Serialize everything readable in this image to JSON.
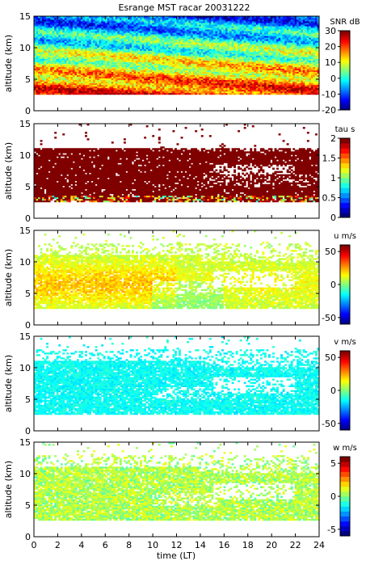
{
  "figure_title": "Esrange MST racar 20031222",
  "xlabel": "time (LT)",
  "chart_data": [
    {
      "type": "heatmap",
      "variable": "snr",
      "colorbar_label": "SNR dB",
      "ylabel": "altitude (km)",
      "xlim": [
        0,
        24
      ],
      "ylim": [
        0,
        15
      ],
      "clim": [
        -20,
        30
      ],
      "colorbar_ticks": [
        -20,
        -10,
        0,
        10,
        20,
        30
      ],
      "colormap": "jet-smooth",
      "data_altitude_range_km": [
        2.5,
        15
      ],
      "x_ticks": [
        0,
        2,
        4,
        6,
        8,
        10,
        12,
        14,
        16,
        18,
        20,
        22,
        24
      ],
      "y_ticks": [
        0,
        5,
        10,
        15
      ]
    },
    {
      "type": "heatmap",
      "variable": "tau",
      "colorbar_label": "tau s",
      "ylabel": "altitude (km)",
      "xlim": [
        0,
        24
      ],
      "ylim": [
        0,
        15
      ],
      "clim": [
        0,
        2
      ],
      "colorbar_ticks": [
        0,
        0.5,
        1,
        1.5,
        2
      ],
      "colormap": "jet-discrete",
      "data_altitude_range_km": [
        2.5,
        11
      ],
      "x_ticks": [
        0,
        2,
        4,
        6,
        8,
        10,
        12,
        14,
        16,
        18,
        20,
        22,
        24
      ],
      "y_ticks": [
        0,
        5,
        10,
        15
      ]
    },
    {
      "type": "heatmap",
      "variable": "u",
      "colorbar_label": "u m/s",
      "ylabel": "altitude (km)",
      "xlim": [
        0,
        24
      ],
      "ylim": [
        0,
        15
      ],
      "clim": [
        -60,
        60
      ],
      "colorbar_ticks": [
        -50,
        0,
        50
      ],
      "colormap": "jet-smooth",
      "data_altitude_range_km": [
        2.5,
        11
      ],
      "x_ticks": [
        0,
        2,
        4,
        6,
        8,
        10,
        12,
        14,
        16,
        18,
        20,
        22,
        24
      ],
      "y_ticks": [
        0,
        5,
        10,
        15
      ]
    },
    {
      "type": "heatmap",
      "variable": "v",
      "colorbar_label": "v m/s",
      "ylabel": "altitude (km)",
      "xlim": [
        0,
        24
      ],
      "ylim": [
        0,
        15
      ],
      "clim": [
        -60,
        60
      ],
      "colorbar_ticks": [
        -50,
        0,
        50
      ],
      "colormap": "jet-smooth",
      "data_altitude_range_km": [
        2.5,
        11
      ],
      "x_ticks": [
        0,
        2,
        4,
        6,
        8,
        10,
        12,
        14,
        16,
        18,
        20,
        22,
        24
      ],
      "y_ticks": [
        0,
        5,
        10,
        15
      ]
    },
    {
      "type": "heatmap",
      "variable": "w",
      "colorbar_label": "w m/s",
      "ylabel": "altitude (km)",
      "xlim": [
        0,
        24
      ],
      "ylim": [
        0,
        15
      ],
      "clim": [
        -6,
        6
      ],
      "colorbar_ticks": [
        -5,
        0,
        5
      ],
      "colormap": "jet-discrete",
      "data_altitude_range_km": [
        2.5,
        11
      ],
      "x_ticks": [
        0,
        2,
        4,
        6,
        8,
        10,
        12,
        14,
        16,
        18,
        20,
        22,
        24
      ],
      "y_ticks": [
        0,
        5,
        10,
        15
      ]
    }
  ]
}
